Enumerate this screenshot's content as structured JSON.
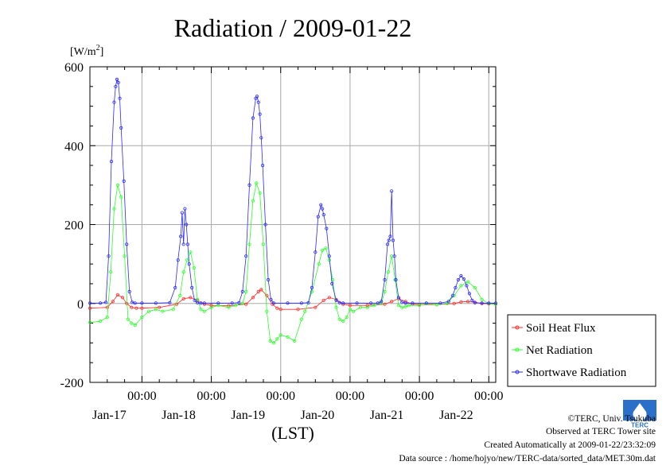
{
  "title": "Radiation / 2009-01-22",
  "unit_label": "[W/m",
  "unit_sup": "2",
  "unit_close": "]",
  "xlabel": "(LST)",
  "footer": {
    "copyright": "©TERC, Univ. Tsukuba",
    "observed": "Observed at TERC Tower site",
    "created": "Created Automatically at 2009-01-22/23:32:09",
    "source": "Data source : /home/hojyo/new/TERC-data/sorted_data/MET.30m.dat"
  },
  "logo_text": "TERC",
  "chart_data": {
    "type": "line",
    "title": "Radiation / 2009-01-22",
    "xlabel": "(LST)",
    "ylabel": "[W/m2]",
    "ylim": [
      -200,
      600
    ],
    "yticks": [
      -200,
      0,
      200,
      400,
      600
    ],
    "x_range_days": [
      16.25,
      22.1
    ],
    "x_ticks": [
      {
        "time": "00:00",
        "date": "Jan-17",
        "day": 17
      },
      {
        "time": "00:00",
        "date": "Jan-18",
        "day": 18
      },
      {
        "time": "00:00",
        "date": "Jan-19",
        "day": 19
      },
      {
        "time": "00:00",
        "date": "Jan-20",
        "day": 20
      },
      {
        "time": "00:00",
        "date": "Jan-21",
        "day": 21
      },
      {
        "time": "00:00",
        "date": "Jan-22",
        "day": 22
      }
    ],
    "grid": true,
    "legend_position": "right",
    "series": [
      {
        "name": "Soil Heat Flux",
        "color": "#ff2a2a",
        "x": [
          16.25,
          16.5,
          16.58,
          16.65,
          16.72,
          16.78,
          16.85,
          16.92,
          17.0,
          17.25,
          17.5,
          17.6,
          17.7,
          17.8,
          17.9,
          18.0,
          18.25,
          18.5,
          18.6,
          18.68,
          18.72,
          18.8,
          18.88,
          18.95,
          19.0,
          19.25,
          19.5,
          19.62,
          19.7,
          19.8,
          19.9,
          20.0,
          20.25,
          20.5,
          20.6,
          20.7,
          20.8,
          20.9,
          21.0,
          21.25,
          21.5,
          21.6,
          21.7,
          21.8,
          21.9,
          22.0,
          22.1
        ],
        "y": [
          -12,
          -10,
          5,
          22,
          15,
          0,
          -10,
          -12,
          -12,
          -10,
          -2,
          12,
          15,
          8,
          -2,
          -5,
          -6,
          -2,
          15,
          30,
          35,
          20,
          -2,
          -12,
          -15,
          -15,
          -10,
          8,
          15,
          10,
          -2,
          -5,
          -5,
          -2,
          5,
          12,
          5,
          -2,
          -3,
          -3,
          0,
          4,
          5,
          3,
          0,
          -1,
          -2
        ]
      },
      {
        "name": "Net Radiation",
        "color": "#2aff2a",
        "x": [
          16.25,
          16.4,
          16.5,
          16.55,
          16.6,
          16.65,
          16.7,
          16.75,
          16.8,
          16.85,
          16.9,
          17.0,
          17.1,
          17.2,
          17.3,
          17.45,
          17.55,
          17.6,
          17.65,
          17.7,
          17.75,
          17.8,
          17.85,
          17.9,
          18.0,
          18.1,
          18.25,
          18.35,
          18.45,
          18.5,
          18.55,
          18.6,
          18.65,
          18.7,
          18.75,
          18.8,
          18.85,
          18.9,
          18.95,
          19.0,
          19.1,
          19.2,
          19.3,
          19.35,
          19.45,
          19.55,
          19.6,
          19.65,
          19.7,
          19.75,
          19.8,
          19.85,
          19.9,
          19.95,
          20.0,
          20.05,
          20.15,
          20.25,
          20.35,
          20.45,
          20.5,
          20.55,
          20.6,
          20.65,
          20.7,
          20.75,
          20.8,
          20.85,
          21.0,
          21.1,
          21.25,
          21.4,
          21.5,
          21.6,
          21.7,
          21.8,
          21.9,
          22.0,
          22.1
        ],
        "y": [
          -48,
          -45,
          -35,
          80,
          240,
          300,
          270,
          120,
          -40,
          -50,
          -55,
          -35,
          -20,
          -15,
          -20,
          -15,
          20,
          80,
          110,
          130,
          90,
          10,
          -15,
          -20,
          -10,
          -5,
          -10,
          -5,
          0,
          30,
          150,
          260,
          305,
          280,
          150,
          -20,
          -95,
          -100,
          -90,
          -80,
          -85,
          -95,
          -40,
          -20,
          30,
          100,
          135,
          140,
          110,
          60,
          -10,
          -40,
          -45,
          -35,
          -15,
          -20,
          -10,
          -10,
          -5,
          0,
          30,
          80,
          120,
          60,
          -5,
          -10,
          -8,
          -5,
          -5,
          0,
          -3,
          0,
          20,
          45,
          55,
          40,
          10,
          0,
          -2
        ]
      },
      {
        "name": "Shortwave Radiation",
        "color": "#2a2aff",
        "x": [
          16.25,
          16.4,
          16.48,
          16.52,
          16.56,
          16.6,
          16.62,
          16.64,
          16.66,
          16.68,
          16.7,
          16.74,
          16.78,
          16.82,
          16.86,
          16.9,
          17.0,
          17.2,
          17.4,
          17.48,
          17.52,
          17.56,
          17.58,
          17.6,
          17.62,
          17.64,
          17.66,
          17.68,
          17.72,
          17.76,
          17.8,
          17.85,
          17.9,
          18.1,
          18.3,
          18.4,
          18.45,
          18.5,
          18.55,
          18.6,
          18.64,
          18.66,
          18.68,
          18.7,
          18.72,
          18.74,
          18.78,
          18.82,
          18.86,
          18.9,
          19.1,
          19.3,
          19.4,
          19.45,
          19.5,
          19.54,
          19.58,
          19.6,
          19.62,
          19.66,
          19.7,
          19.74,
          19.8,
          19.85,
          19.9,
          20.1,
          20.3,
          20.4,
          20.45,
          20.5,
          20.54,
          20.56,
          20.58,
          20.6,
          20.62,
          20.64,
          20.66,
          20.7,
          20.75,
          20.8,
          20.9,
          21.1,
          21.3,
          21.42,
          21.48,
          21.52,
          21.56,
          21.6,
          21.64,
          21.68,
          21.72,
          21.76,
          21.8,
          21.9,
          22.0,
          22.1
        ],
        "y": [
          1,
          1,
          3,
          120,
          360,
          510,
          550,
          568,
          560,
          520,
          445,
          310,
          150,
          30,
          3,
          1,
          1,
          1,
          2,
          40,
          110,
          170,
          230,
          150,
          240,
          200,
          150,
          100,
          40,
          8,
          2,
          1,
          1,
          1,
          1,
          2,
          30,
          120,
          300,
          470,
          520,
          525,
          510,
          480,
          420,
          350,
          200,
          60,
          10,
          1,
          1,
          1,
          2,
          40,
          130,
          220,
          250,
          240,
          225,
          190,
          120,
          50,
          8,
          2,
          1,
          1,
          1,
          1,
          5,
          60,
          150,
          160,
          170,
          285,
          160,
          120,
          60,
          15,
          3,
          1,
          1,
          1,
          1,
          5,
          20,
          40,
          60,
          70,
          62,
          45,
          25,
          8,
          2,
          1,
          1,
          1
        ]
      }
    ]
  }
}
